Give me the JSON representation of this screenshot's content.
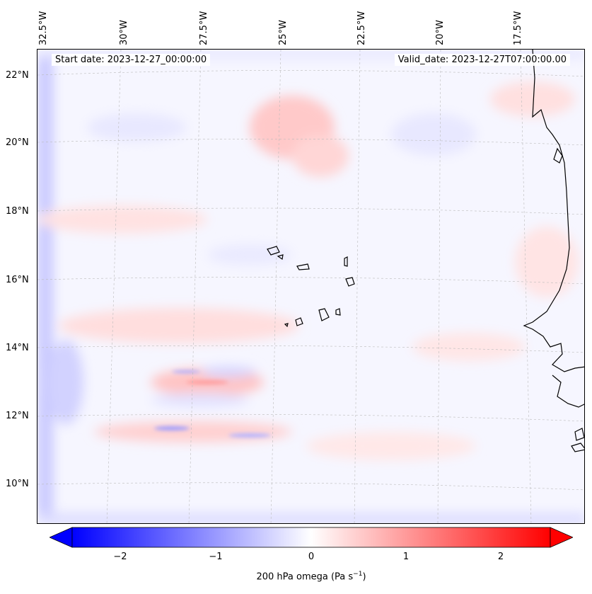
{
  "map": {
    "start_date": "Start date: 2023-12-27_00:00:00",
    "valid_date": "Valid_date: 2023-12-27T07:00:00.00",
    "lon_labels": [
      "32.5°W",
      "30°W",
      "27.5°W",
      "25°W",
      "22.5°W",
      "20°W",
      "17.5°W"
    ],
    "lat_labels": [
      "22°N",
      "20°N",
      "18°N",
      "16°N",
      "14°N",
      "12°N",
      "10°N"
    ],
    "field": "200 hPa omega"
  },
  "colorbar": {
    "ticks": [
      "−2",
      "−1",
      "0",
      "1",
      "2"
    ],
    "label": "200 hPa omega (Pa s",
    "label_exp": "−1",
    "label_end": ")",
    "range": [
      -2.5,
      2.5
    ],
    "colors": {
      "negative": "#0000ff",
      "zero": "#ffffff",
      "positive": "#ff0000"
    }
  }
}
